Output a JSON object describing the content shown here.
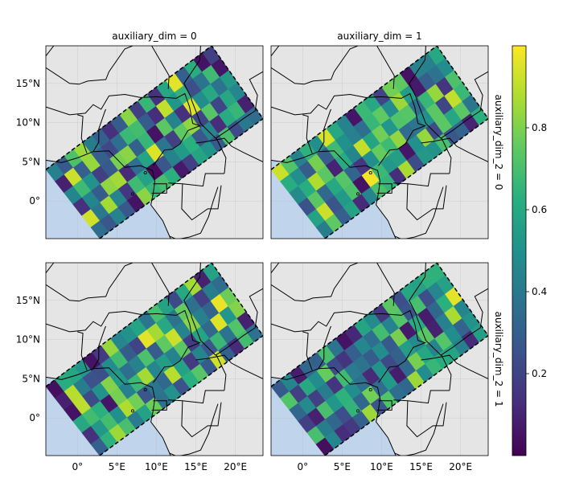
{
  "chart_data": {
    "type": "heatmap",
    "description_free": true,
    "panels": [
      {
        "col_title": "auxiliary_dim = 0",
        "row_title": "auxiliary_dim_2 = 0"
      },
      {
        "col_title": "auxiliary_dim = 1",
        "row_title": "auxiliary_dim_2 = 0"
      },
      {
        "col_title": "auxiliary_dim = 0",
        "row_title": "auxiliary_dim_2 = 1"
      },
      {
        "col_title": "auxiliary_dim = 1",
        "row_title": "auxiliary_dim_2 = 1"
      }
    ],
    "col_titles": [
      "auxiliary_dim = 0",
      "auxiliary_dim = 1"
    ],
    "row_titles": [
      "auxiliary_dim_2 = 0",
      "auxiliary_dim_2 = 1"
    ],
    "x_ticks": [
      {
        "value": 0,
        "label": "0°"
      },
      {
        "value": 5,
        "label": "5°E"
      },
      {
        "value": 10,
        "label": "10°E"
      },
      {
        "value": 15,
        "label": "15°E"
      },
      {
        "value": 20,
        "label": "20°E"
      }
    ],
    "y_ticks": [
      {
        "value": 0,
        "label": "0°"
      },
      {
        "value": 5,
        "label": "5°N"
      },
      {
        "value": 10,
        "label": "10°N"
      },
      {
        "value": 15,
        "label": "15°N"
      }
    ],
    "xlim": [
      -4,
      23.5
    ],
    "ylim": [
      -4.8,
      19.8
    ],
    "swath": {
      "corners": [
        [
          -4,
          4
        ],
        [
          2.8,
          -4.8
        ],
        [
          23.5,
          10.5
        ],
        [
          17,
          19.8
        ]
      ],
      "cells_along": 18,
      "cells_across": 6
    },
    "colorbar": {
      "colormap": "viridis",
      "range": [
        0,
        1
      ],
      "ticks": [
        0.2,
        0.4,
        0.6,
        0.8
      ],
      "tick_labels": [
        "0.2",
        "0.4",
        "0.6",
        "0.8"
      ]
    },
    "grid": true,
    "land_color": "#e5e5e5",
    "ocean_color": "#c0d5ec",
    "panel_values": [
      [
        0.35,
        0.27,
        0.44,
        0.27,
        0.05,
        0.82,
        0.66,
        0.7,
        0.63,
        0.07,
        0.19,
        0.58,
        0.51,
        0.28,
        0.7,
        0.23,
        0.4,
        0.35,
        0.93,
        0.4,
        0.86,
        0.45,
        0.16,
        0.68,
        0.57,
        0.03,
        0.27,
        0.44,
        0.54,
        0.63,
        0.27,
        0.46,
        0.13,
        0.61,
        0.66,
        0.09,
        0.14,
        0.45,
        0.29,
        0.83,
        0.86,
        0.12,
        0.36,
        0.58,
        0.95,
        0.39,
        0.19,
        0.75,
        0.83,
        0.21,
        0.73,
        0.21,
        0.59,
        0.46,
        0.45,
        0.68,
        0.51,
        0.19,
        0.28,
        0.79,
        0.82,
        0.31,
        0.66,
        0.05,
        0.74,
        0.44,
        0.14,
        0.95,
        0.48,
        0.6,
        0.38,
        0.54,
        0.09,
        0.92,
        0.3,
        0.84,
        0.3,
        0.22,
        0.36,
        0.67,
        0.69,
        0.29,
        0.13,
        0.91,
        0.52,
        0.65,
        0.24,
        0.38,
        0.68,
        0.06,
        0.43,
        0.28,
        0.71,
        0.85,
        0.42,
        0.3,
        0.14,
        0.29,
        0.82,
        0.19,
        0.66,
        0.14,
        0.59,
        0.96,
        0.3,
        0.62,
        0.05,
        0.19
      ],
      [
        0.42,
        0.75,
        0.3,
        0.57,
        0.12,
        0.45,
        0.71,
        0.65,
        0.13,
        0.87,
        0.23,
        0.53,
        0.51,
        0.7,
        0.27,
        0.32,
        0.1,
        0.63,
        0.57,
        0.92,
        0.26,
        0.54,
        0.71,
        0.05,
        0.98,
        0.67,
        0.53,
        0.56,
        0.06,
        0.5,
        0.84,
        0.23,
        0.74,
        0.59,
        0.74,
        0.39,
        0.25,
        0.74,
        0.34,
        0.6,
        0.73,
        0.32,
        0.16,
        0.49,
        0.76,
        0.68,
        0.83,
        0.35,
        0.39,
        0.5,
        0.74,
        0.21,
        0.91,
        0.67,
        0.47,
        0.62,
        0.88,
        0.74,
        0.1,
        0.61,
        0.45,
        0.91,
        0.58,
        0.78,
        0.52,
        0.72,
        0.73,
        0.37,
        0.66,
        0.84,
        0.15,
        0.71,
        0.62,
        0.49,
        0.29,
        0.79,
        0.29,
        0.68,
        0.5,
        0.43,
        0.36,
        0.66,
        0.75,
        0.48,
        0.85,
        0.55,
        0.07,
        0.3,
        0.38,
        0.48,
        0.92,
        0.72,
        0.43,
        0.64,
        0.49,
        0.94,
        0.6,
        0.44,
        0.06,
        0.67,
        0.6,
        0.2,
        0.78,
        0.75,
        0.05,
        0.44,
        0.43,
        0.6
      ],
      [
        0.3,
        0.64,
        0.85,
        0.7,
        0.41,
        0.57,
        0.77,
        0.37,
        0.51,
        0.25,
        0.63,
        0.73,
        0.28,
        0.93,
        0.31,
        0.12,
        0.69,
        0.37,
        0.14,
        0.53,
        0.69,
        0.49,
        0.88,
        0.78,
        0.27,
        0.39,
        0.34,
        0.89,
        0.57,
        0.17,
        0.45,
        0.27,
        0.67,
        0.38,
        0.72,
        0.09,
        0.6,
        0.69,
        0.63,
        0.06,
        0.79,
        0.43,
        0.67,
        0.86,
        0.46,
        0.55,
        0.44,
        0.74,
        0.18,
        0.58,
        0.34,
        0.95,
        0.52,
        0.81,
        0.05,
        0.9,
        0.23,
        0.51,
        0.81,
        0.54,
        0.36,
        0.44,
        0.71,
        0.29,
        0.75,
        0.92,
        0.44,
        0.82,
        0.43,
        0.32,
        0.97,
        0.77,
        0.09,
        0.89,
        0.42,
        0.25,
        0.24,
        0.48,
        0.68,
        0.29,
        0.2,
        0.96,
        0.86,
        0.6,
        0.38,
        0.76,
        0.37,
        0.19,
        0.42,
        0.35,
        0.04,
        0.62,
        0.59,
        0.52,
        0.05,
        0.17,
        0.84,
        0.46,
        0.51,
        0.58,
        0.39,
        0.7,
        0.57,
        0.22,
        0.6,
        0.86,
        0.09,
        0.57
      ],
      [
        0.04,
        0.46,
        0.13,
        0.17,
        0.31,
        0.85,
        0.26,
        0.72,
        0.36,
        0.33,
        0.85,
        0.48,
        0.66,
        0.61,
        0.58,
        0.43,
        0.12,
        0.56,
        0.7,
        0.42,
        0.33,
        0.24,
        0.65,
        0.33,
        0.78,
        0.35,
        0.54,
        0.08,
        0.34,
        0.79,
        0.59,
        0.45,
        0.73,
        0.48,
        0.32,
        0.51,
        0.19,
        0.09,
        0.7,
        0.52,
        0.64,
        0.48,
        0.37,
        0.12,
        0.51,
        0.22,
        0.31,
        0.55,
        0.47,
        0.74,
        0.09,
        0.43,
        0.87,
        0.45,
        0.33,
        0.47,
        0.19,
        0.42,
        0.15,
        0.68,
        0.41,
        0.38,
        0.29,
        0.48,
        0.28,
        0.79,
        0.07,
        0.61,
        0.08,
        0.33,
        0.63,
        0.96,
        0.72,
        0.19,
        0.6,
        0.48,
        0.76,
        0.23,
        0.15,
        0.3,
        0.46,
        0.36,
        0.69,
        0.44,
        0.72,
        0.26,
        0.7,
        0.24,
        0.46,
        0.57,
        0.28,
        0.45,
        0.08,
        0.33,
        0.31,
        0.7,
        0.38,
        0.05,
        0.11,
        0.58,
        0.47,
        0.16,
        0.74,
        0.24,
        0.59,
        0.57,
        0.64,
        0.64
      ]
    ]
  }
}
